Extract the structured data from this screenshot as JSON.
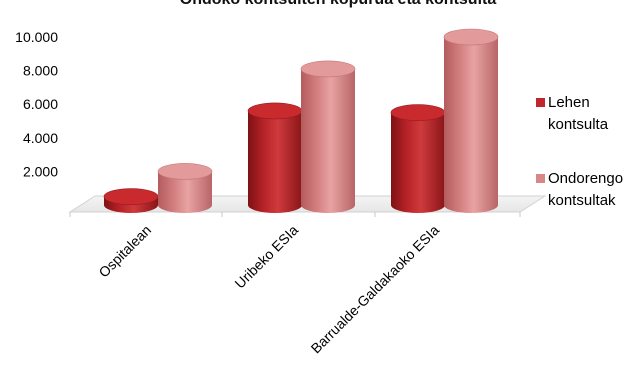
{
  "chart_data": {
    "type": "bar",
    "title": "Ondoko kontsulten kopurua eta kontsulta",
    "categories": [
      "Ospitalean",
      "Uribeko ESIa",
      "Barrualde-Galdakaoko ESIa"
    ],
    "series": [
      {
        "name": "Lehen kontsulta",
        "values": [
          500,
          5600,
          5500
        ],
        "color": "#c0272d"
      },
      {
        "name": "Ondorengo kontsultak",
        "values": [
          2000,
          8100,
          10000
        ],
        "color": "#d98686"
      }
    ],
    "yticks": [
      "2.000",
      "4.000",
      "6.000",
      "8.000",
      "10.000"
    ],
    "ylim": [
      0,
      10500
    ],
    "grid": false,
    "legend": "right",
    "bar_shape": "cylinder-3d"
  }
}
